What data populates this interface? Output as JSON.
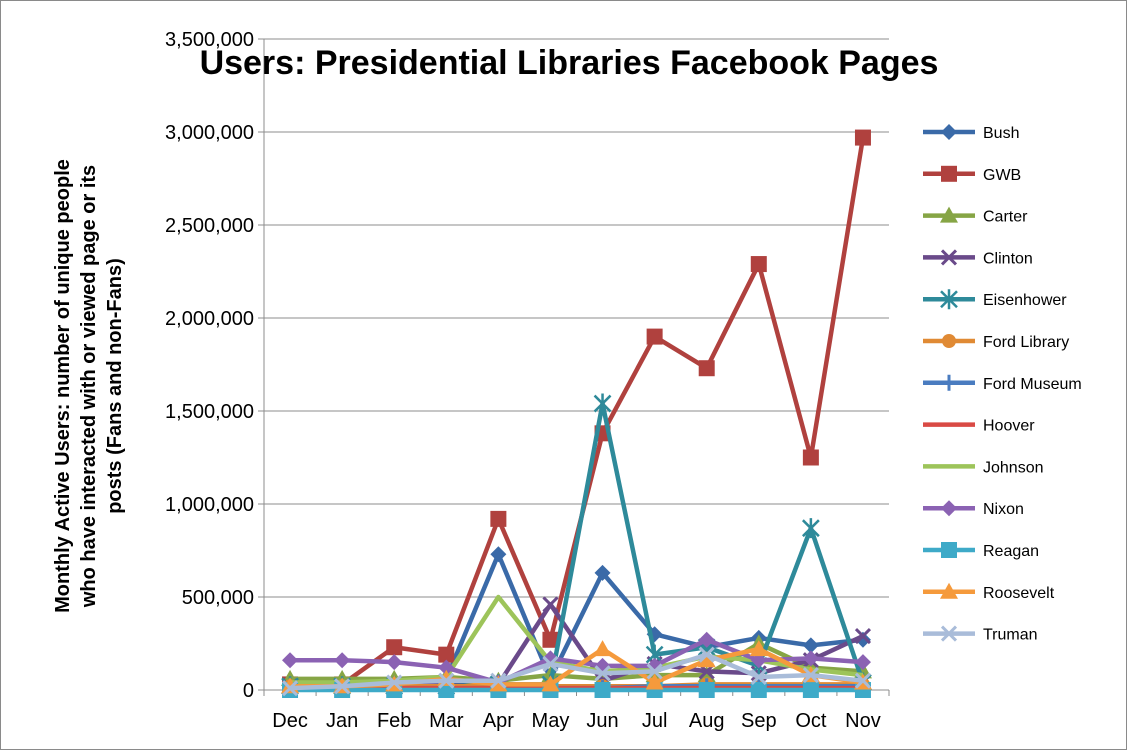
{
  "chart_data": {
    "type": "line",
    "title": "Users: Presidential Libraries Facebook Pages",
    "ylabel_lines": [
      "Monthly Active Users: number of unique people",
      "who have interacted with or viewed page or its",
      "posts (Fans and non-Fans)"
    ],
    "xlabel": "",
    "categories": [
      "Dec",
      "Jan",
      "Feb",
      "Mar",
      "Apr",
      "May",
      "Jun",
      "Jul",
      "Aug",
      "Sep",
      "Oct",
      "Nov"
    ],
    "ylim": [
      0,
      3500000
    ],
    "yticks": [
      0,
      500000,
      1000000,
      1500000,
      2000000,
      2500000,
      3000000,
      3500000
    ],
    "ytick_labels": [
      "0",
      "500,000",
      "1,000,000",
      "1,500,000",
      "2,000,000",
      "2,500,000",
      "3,000,000",
      "3,500,000"
    ],
    "grid": "horizontal",
    "legend_position": "right",
    "series": [
      {
        "name": "Bush",
        "color": "#3a6aa8",
        "marker": "diamond",
        "values": [
          30000,
          30000,
          40000,
          60000,
          730000,
          60000,
          630000,
          300000,
          230000,
          280000,
          240000,
          270000
        ]
      },
      {
        "name": "GWB",
        "color": "#b0413e",
        "marker": "square",
        "values": [
          30000,
          30000,
          230000,
          190000,
          920000,
          270000,
          1380000,
          1900000,
          1730000,
          2290000,
          1250000,
          2970000
        ]
      },
      {
        "name": "Carter",
        "color": "#86a545",
        "marker": "triangle",
        "values": [
          60000,
          60000,
          60000,
          70000,
          50000,
          80000,
          60000,
          80000,
          80000,
          250000,
          120000,
          100000
        ]
      },
      {
        "name": "Clinton",
        "color": "#6a4a8a",
        "marker": "x",
        "values": [
          20000,
          20000,
          30000,
          30000,
          30000,
          460000,
          50000,
          140000,
          100000,
          90000,
          160000,
          290000
        ]
      },
      {
        "name": "Eisenhower",
        "color": "#2e8a9a",
        "marker": "star",
        "values": [
          20000,
          20000,
          20000,
          20000,
          30000,
          30000,
          1540000,
          190000,
          230000,
          130000,
          870000,
          40000
        ]
      },
      {
        "name": "Ford Library",
        "color": "#e08a34",
        "marker": "circle",
        "values": [
          20000,
          20000,
          20000,
          20000,
          20000,
          20000,
          20000,
          20000,
          30000,
          30000,
          30000,
          30000
        ]
      },
      {
        "name": "Ford Museum",
        "color": "#4a7cc0",
        "marker": "plus",
        "values": [
          10000,
          10000,
          10000,
          10000,
          10000,
          10000,
          10000,
          20000,
          20000,
          20000,
          20000,
          20000
        ]
      },
      {
        "name": "Hoover",
        "color": "#d94a44",
        "marker": "none",
        "values": [
          10000,
          10000,
          10000,
          10000,
          10000,
          10000,
          10000,
          10000,
          10000,
          10000,
          10000,
          10000
        ]
      },
      {
        "name": "Johnson",
        "color": "#9dc45a",
        "marker": "none",
        "values": [
          40000,
          40000,
          50000,
          70000,
          500000,
          150000,
          100000,
          120000,
          180000,
          160000,
          110000,
          80000
        ]
      },
      {
        "name": "Nixon",
        "color": "#8b62b3",
        "marker": "diamond",
        "values": [
          160000,
          160000,
          150000,
          120000,
          40000,
          170000,
          130000,
          130000,
          270000,
          160000,
          170000,
          150000
        ]
      },
      {
        "name": "Reagan",
        "color": "#3eaac8",
        "marker": "square",
        "values": [
          0,
          0,
          0,
          0,
          0,
          0,
          0,
          0,
          0,
          0,
          0,
          0
        ]
      },
      {
        "name": "Roosevelt",
        "color": "#f59a3c",
        "marker": "triangle",
        "values": [
          20000,
          20000,
          30000,
          60000,
          30000,
          30000,
          220000,
          40000,
          160000,
          220000,
          80000,
          40000
        ]
      },
      {
        "name": "Truman",
        "color": "#a9bcd9",
        "marker": "x",
        "values": [
          10000,
          20000,
          40000,
          50000,
          50000,
          140000,
          90000,
          100000,
          190000,
          70000,
          80000,
          50000
        ]
      }
    ]
  }
}
